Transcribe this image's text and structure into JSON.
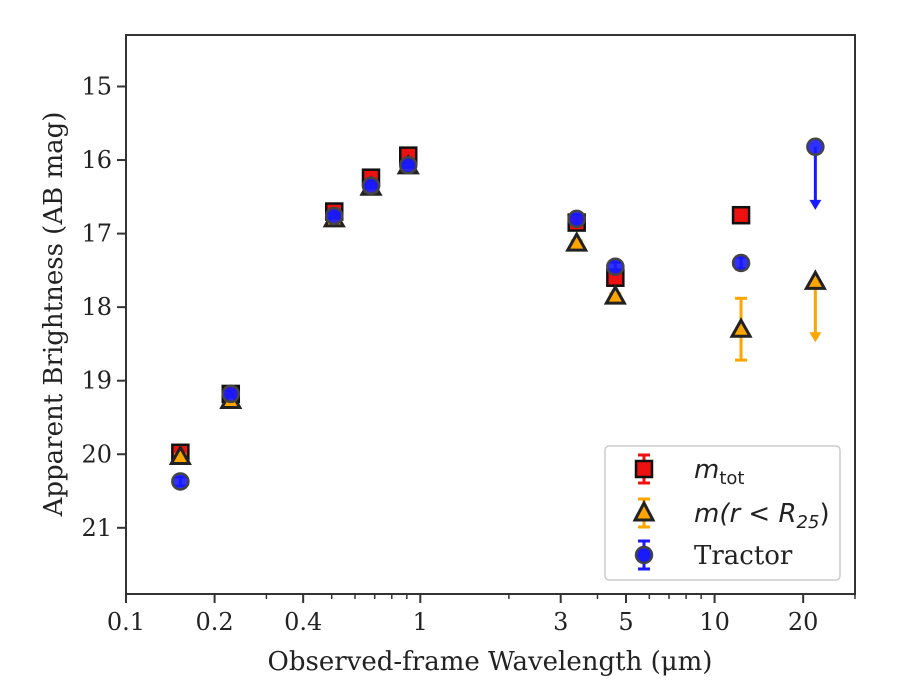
{
  "chart_data": {
    "type": "scatter",
    "xlabel": "Observed-frame Wavelength (μm)",
    "ylabel": "Apparent Brightness (AB mag)",
    "xscale": "log",
    "xlim": [
      0.1,
      30
    ],
    "ylim": [
      21.9,
      14.3
    ],
    "y_inverted": true,
    "grid": false,
    "legend_position": "lower-right",
    "xticks": [
      {
        "value": 0.1,
        "label": "0.1"
      },
      {
        "value": 0.2,
        "label": "0.2"
      },
      {
        "value": 0.4,
        "label": "0.4"
      },
      {
        "value": 1,
        "label": "1"
      },
      {
        "value": 3,
        "label": "3"
      },
      {
        "value": 5,
        "label": "5"
      },
      {
        "value": 10,
        "label": "10"
      },
      {
        "value": 20,
        "label": "20"
      }
    ],
    "yticks": [
      {
        "value": 15,
        "label": "15"
      },
      {
        "value": 16,
        "label": "16"
      },
      {
        "value": 17,
        "label": "17"
      },
      {
        "value": 18,
        "label": "18"
      },
      {
        "value": 19,
        "label": "19"
      },
      {
        "value": 20,
        "label": "20"
      },
      {
        "value": 21,
        "label": "21"
      }
    ],
    "series": [
      {
        "name": "m_tot",
        "marker": "square",
        "color": "#ee1111",
        "points": [
          {
            "x": 0.153,
            "y": 19.98,
            "err": 0.05
          },
          {
            "x": 0.227,
            "y": 19.18,
            "err": 0.05
          },
          {
            "x": 0.51,
            "y": 16.7,
            "err": 0.05
          },
          {
            "x": 0.68,
            "y": 16.24,
            "err": 0.05
          },
          {
            "x": 0.91,
            "y": 15.94,
            "err": 0.05
          },
          {
            "x": 3.4,
            "y": 16.85,
            "err": 0.05
          },
          {
            "x": 4.6,
            "y": 17.6,
            "err": 0.05
          },
          {
            "x": 12.3,
            "y": 16.75,
            "err": 0.05
          }
        ]
      },
      {
        "name": "m(r<R25)",
        "marker": "triangle",
        "color": "#ffa500",
        "points": [
          {
            "x": 0.153,
            "y": 20.03,
            "err": 0.03
          },
          {
            "x": 0.227,
            "y": 19.27,
            "err": 0.03
          },
          {
            "x": 0.51,
            "y": 16.8,
            "err": 0.03
          },
          {
            "x": 0.68,
            "y": 16.37,
            "err": 0.03
          },
          {
            "x": 0.91,
            "y": 16.08,
            "err": 0.03
          },
          {
            "x": 3.4,
            "y": 17.13,
            "err": 0.03
          },
          {
            "x": 4.6,
            "y": 17.85,
            "err": 0.03
          },
          {
            "x": 12.3,
            "y": 18.3,
            "err": 0.42
          },
          {
            "x": 22.0,
            "y": 17.65,
            "upper_limit_to": 18.45
          }
        ]
      },
      {
        "name": "Tractor",
        "marker": "circle",
        "color": "#1a1aff",
        "points": [
          {
            "x": 0.153,
            "y": 20.37,
            "err": 0.06
          },
          {
            "x": 0.227,
            "y": 19.18,
            "err": 0.04
          },
          {
            "x": 0.51,
            "y": 16.76,
            "err": 0.03
          },
          {
            "x": 0.68,
            "y": 16.35,
            "err": 0.03
          },
          {
            "x": 0.91,
            "y": 16.07,
            "err": 0.03
          },
          {
            "x": 3.4,
            "y": 16.8,
            "err": 0.06
          },
          {
            "x": 4.6,
            "y": 17.45,
            "err": 0.06
          },
          {
            "x": 12.3,
            "y": 17.4,
            "err": 0.08
          },
          {
            "x": 22.0,
            "y": 15.82,
            "upper_limit_to": 16.65
          }
        ]
      }
    ]
  },
  "legend": {
    "m_tot_label": "m",
    "m_tot_sub": "tot",
    "m_r_label": "m(r < R",
    "m_r_sub": "25",
    "m_r_close": ")",
    "tractor_label": "Tractor"
  }
}
